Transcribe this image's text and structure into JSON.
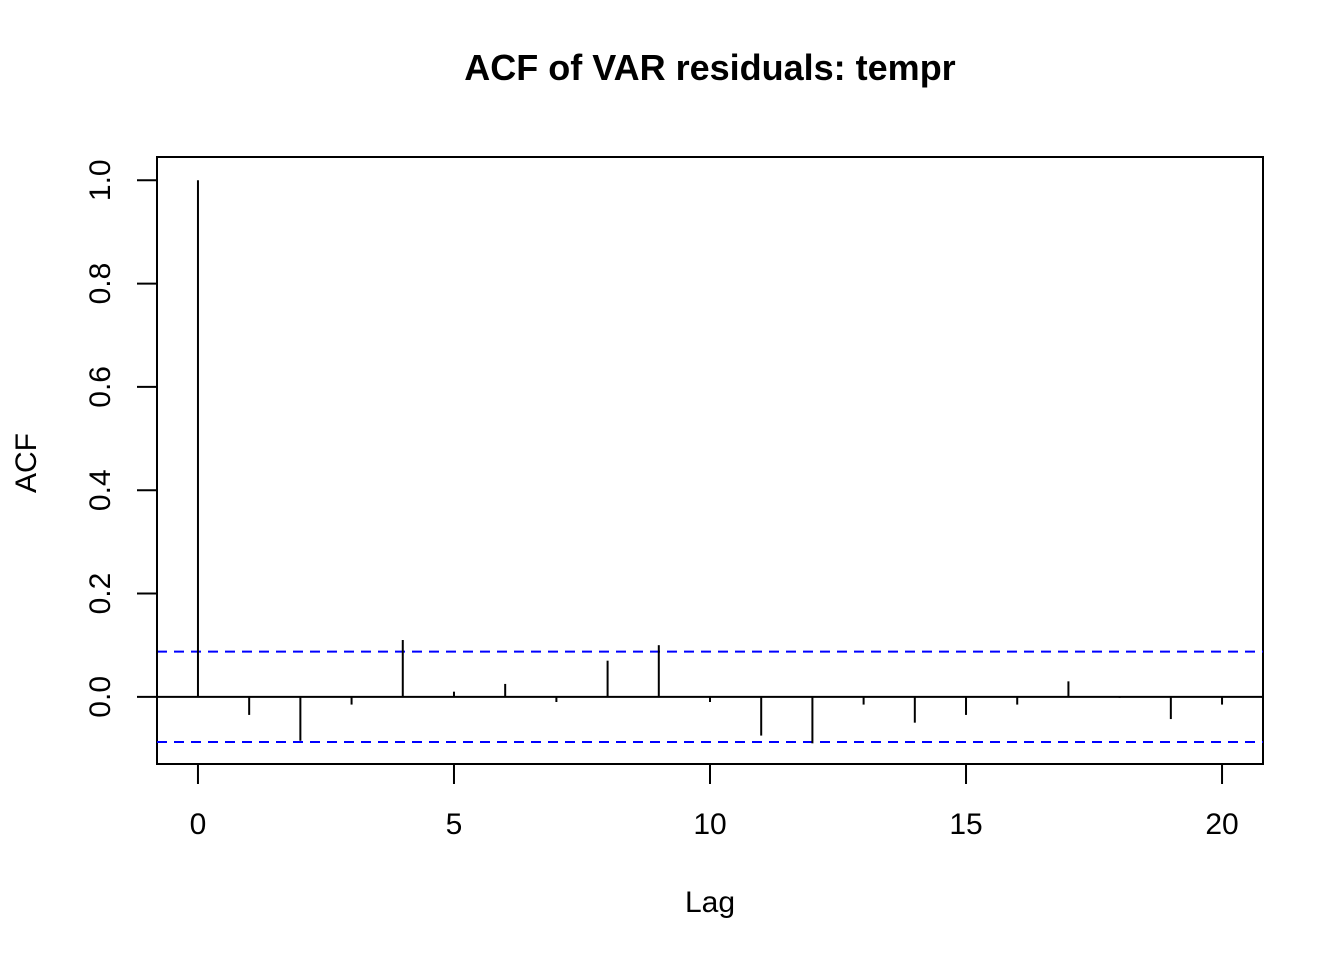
{
  "chart_data": {
    "type": "bar",
    "title": "ACF of VAR residuals: tempr",
    "xlabel": "Lag",
    "ylabel": "ACF",
    "x": [
      0,
      1,
      2,
      3,
      4,
      5,
      6,
      7,
      8,
      9,
      10,
      11,
      12,
      13,
      14,
      15,
      16,
      17,
      18,
      19,
      20
    ],
    "values": [
      1.0,
      -0.035,
      -0.085,
      -0.015,
      0.11,
      0.01,
      0.025,
      -0.01,
      0.07,
      0.1,
      -0.01,
      -0.075,
      -0.09,
      -0.015,
      -0.05,
      -0.035,
      -0.015,
      0.03,
      -0.002,
      -0.043,
      -0.015
    ],
    "confidence_bounds": [
      0.0875,
      -0.0875
    ],
    "confidence_color": "#0000ff",
    "xlim": [
      -0.8,
      20.8
    ],
    "ylim": [
      -0.13,
      1.045
    ],
    "x_ticks": [
      "0",
      "5",
      "10",
      "15",
      "20"
    ],
    "y_ticks": [
      "0.0",
      "0.2",
      "0.4",
      "0.6",
      "0.8",
      "1.0"
    ],
    "grid": false,
    "legend": "none"
  }
}
